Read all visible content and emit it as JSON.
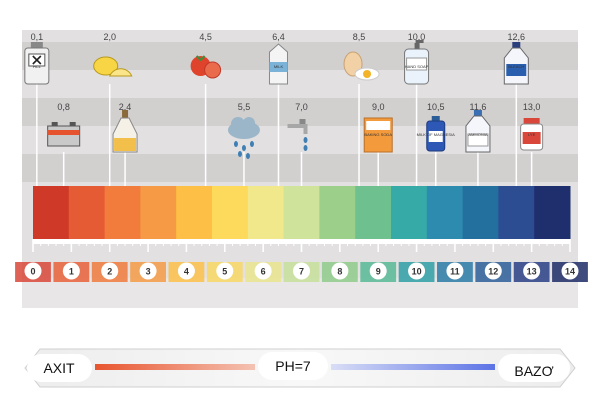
{
  "scale": {
    "min": 0,
    "max": 14,
    "numbers": [
      "0",
      "1",
      "2",
      "3",
      "4",
      "5",
      "6",
      "7",
      "8",
      "9",
      "10",
      "11",
      "12",
      "13",
      "14"
    ],
    "band_colors": [
      "#cf3a28",
      "#e55c34",
      "#f27c3c",
      "#f69a45",
      "#fdbf45",
      "#fdd95c",
      "#f0e88a",
      "#cfe39a",
      "#9ccf8a",
      "#6fc08f",
      "#36aaa6",
      "#2e8bb0",
      "#236f9e",
      "#2d4d93",
      "#1f2f6e"
    ],
    "number_colors": [
      "#d9473a",
      "#e86038",
      "#f07a3c",
      "#f59a44",
      "#fbc04a",
      "#f8d763",
      "#e9e48d",
      "#c7df9a",
      "#8fcb8b",
      "#58b895",
      "#2f9ea6",
      "#2b7aa6",
      "#2b5e98",
      "#2a3f85",
      "#1d2a66"
    ]
  },
  "items": [
    {
      "ph": 0.1,
      "label": "0,1",
      "name": "hcl",
      "icon": "hcl-bottle-icon",
      "row": "top",
      "text": "HCL"
    },
    {
      "ph": 0.8,
      "label": "0,8",
      "name": "battery",
      "icon": "battery-icon",
      "row": "bottom"
    },
    {
      "ph": 2.0,
      "label": "2,0",
      "name": "lemon",
      "icon": "lemon-icon",
      "row": "top"
    },
    {
      "ph": 2.4,
      "label": "2,4",
      "name": "vinegar",
      "icon": "vinegar-bottle-icon",
      "row": "bottom"
    },
    {
      "ph": 4.5,
      "label": "4,5",
      "name": "tomato",
      "icon": "tomato-icon",
      "row": "top"
    },
    {
      "ph": 5.5,
      "label": "5,5",
      "name": "rain",
      "icon": "rain-cloud-icon",
      "row": "bottom"
    },
    {
      "ph": 6.4,
      "label": "6,4",
      "name": "milk",
      "icon": "milk-carton-icon",
      "row": "top",
      "text": "MILK"
    },
    {
      "ph": 7.0,
      "label": "7,0",
      "name": "tap-water",
      "icon": "water-tap-icon",
      "row": "bottom"
    },
    {
      "ph": 8.5,
      "label": "8,5",
      "name": "egg",
      "icon": "egg-icon",
      "row": "top"
    },
    {
      "ph": 9.0,
      "label": "9,0",
      "name": "baking-soda",
      "icon": "baking-soda-box-icon",
      "row": "bottom",
      "text": "BAKING SODA"
    },
    {
      "ph": 10.0,
      "label": "10,0",
      "name": "hand-soap",
      "icon": "hand-soap-icon",
      "row": "top",
      "text": "HAND SOAP"
    },
    {
      "ph": 10.5,
      "label": "10,5",
      "name": "milk-of-magnesia",
      "icon": "magnesia-bottle-icon",
      "row": "bottom",
      "text": "MILK OF MAGNESIA"
    },
    {
      "ph": 11.6,
      "label": "11,6",
      "name": "ammonia",
      "icon": "ammonia-bottle-icon",
      "row": "bottom",
      "text": "AMMONIA"
    },
    {
      "ph": 12.6,
      "label": "12,6",
      "name": "bleach",
      "icon": "bleach-bottle-icon",
      "row": "top",
      "text": "BLEACH"
    },
    {
      "ph": 13.0,
      "label": "13,0",
      "name": "lye",
      "icon": "lye-jar-icon",
      "row": "bottom",
      "text": "LYE"
    }
  ],
  "legend": {
    "acid": "AXIT",
    "neutral": "PH=7",
    "base": "BAZƠ",
    "acid_color": "#e8552f",
    "base_color": "#5c73e6"
  }
}
